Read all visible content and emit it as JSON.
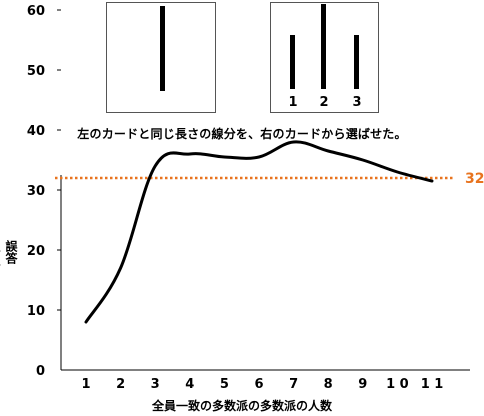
{
  "cards": {
    "left_lines": 1,
    "right_labels": [
      "1",
      "2",
      "3"
    ]
  },
  "caption": "左のカードと同じ長さの線分を、右のカードから選ばせた。",
  "chart_data": {
    "type": "line",
    "x": [
      1,
      2,
      3,
      4,
      5,
      6,
      7,
      8,
      9,
      10,
      11
    ],
    "categories": [
      "1",
      "2",
      "3",
      "4",
      "5",
      "6",
      "7",
      "8",
      "9",
      "1 0",
      "1 1"
    ],
    "series": [
      {
        "values": [
          8,
          17,
          34,
          36,
          35.5,
          35.5,
          38,
          36.5,
          35,
          33,
          31.5
        ]
      }
    ],
    "reference_line": {
      "value": 32,
      "label": "32",
      "color": "#e8731e",
      "style": "dotted"
    },
    "xlabel": "全員一致の多数派の多数派の人数",
    "ylabel": "誤答（%）",
    "yticks": [
      "0",
      "10",
      "20",
      "30",
      "40",
      "50",
      "60"
    ],
    "ylim": [
      0,
      65
    ],
    "xlim": [
      0.5,
      11.5
    ],
    "grid": false,
    "line_color": "#000000"
  }
}
